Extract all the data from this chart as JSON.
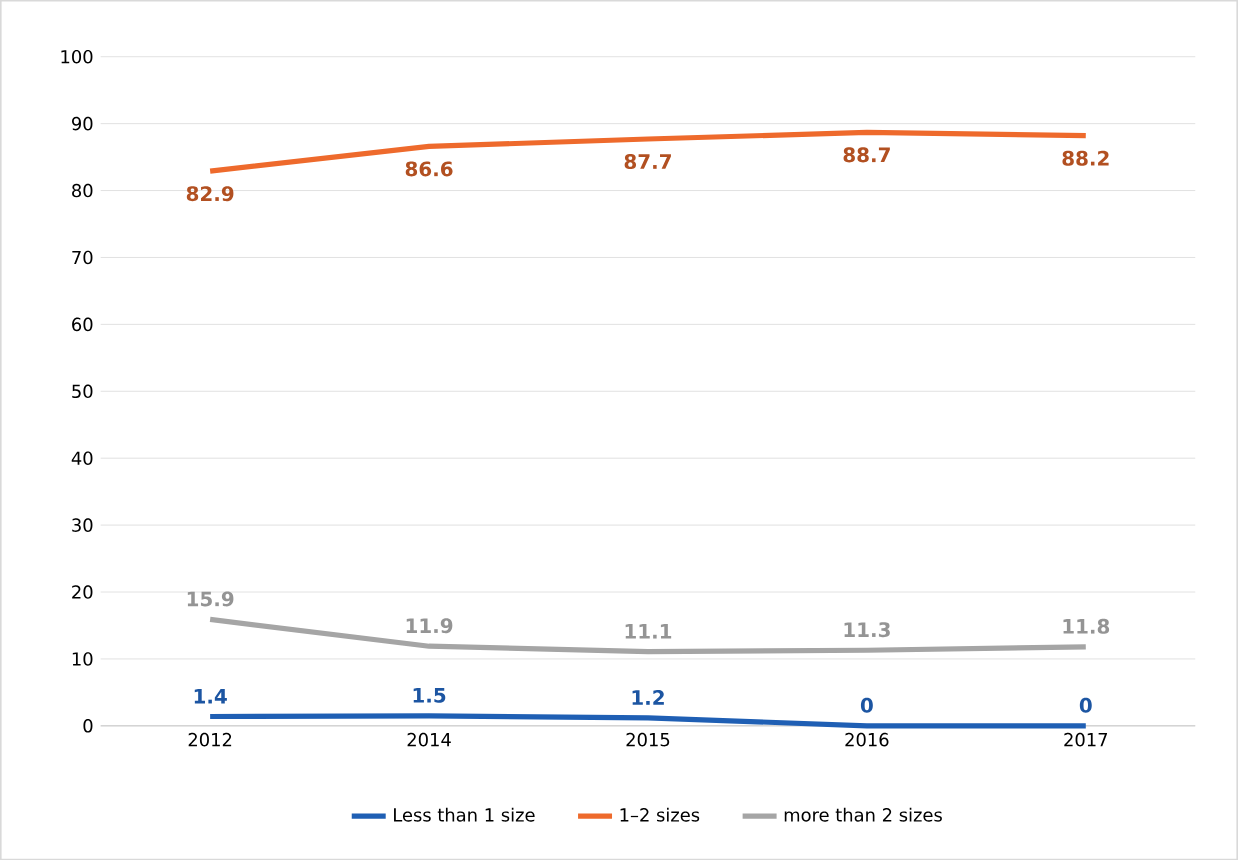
{
  "chart_data": {
    "type": "line",
    "categories": [
      "2012",
      "2014",
      "2015",
      "2016",
      "2017"
    ],
    "series": [
      {
        "name": "Less than 1 size",
        "color": "#1f5fb4",
        "values": [
          1.4,
          1.5,
          1.2,
          0,
          0
        ]
      },
      {
        "name": "1–2 sizes",
        "color": "#ee6a2c",
        "values": [
          82.9,
          86.6,
          87.7,
          88.7,
          88.2
        ]
      },
      {
        "name": "more than 2 sizes",
        "color": "#a5a5a5",
        "values": [
          15.9,
          11.9,
          11.1,
          11.3,
          11.8
        ]
      }
    ],
    "ylim": [
      0,
      100
    ],
    "yticks": [
      0,
      10,
      20,
      30,
      40,
      50,
      60,
      70,
      80,
      90,
      100
    ],
    "grid": "y",
    "legend": "bottom",
    "data_labels": true,
    "marker": "none",
    "line_style": "solid"
  }
}
